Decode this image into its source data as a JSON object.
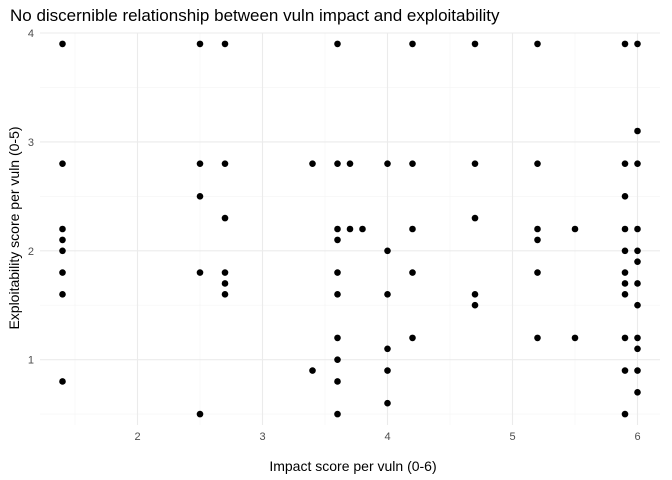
{
  "chart_data": {
    "type": "scatter",
    "title": "No discernible relationship between vuln impact and exploitability",
    "xlabel": "Impact score per vuln (0-6)",
    "ylabel": "Exploitability score per vuln (0-5)",
    "xlim": [
      1.22,
      6.18
    ],
    "ylim": [
      0.4,
      4.0
    ],
    "x_ticks": [
      2,
      3,
      4,
      5,
      6
    ],
    "x_tick_labels": [
      "2",
      "3",
      "4",
      "5",
      "6"
    ],
    "y_ticks": [
      1,
      2,
      3,
      4
    ],
    "y_tick_labels": [
      "1",
      "2",
      "3",
      "4"
    ],
    "x_minor_ticks": [
      1.5,
      2.5,
      3.5,
      4.5,
      5.5
    ],
    "y_minor_ticks": [
      0.5,
      1.5,
      2.5,
      3.5
    ],
    "grid": true,
    "legend": "none",
    "point_color": "#000000",
    "points": [
      [
        1.4,
        3.9
      ],
      [
        1.4,
        2.8
      ],
      [
        1.4,
        2.2
      ],
      [
        1.4,
        2.1
      ],
      [
        1.4,
        2.0
      ],
      [
        1.4,
        1.8
      ],
      [
        1.4,
        1.6
      ],
      [
        1.4,
        0.8
      ],
      [
        2.5,
        3.9
      ],
      [
        2.5,
        2.8
      ],
      [
        2.5,
        2.5
      ],
      [
        2.5,
        1.8
      ],
      [
        2.5,
        0.5
      ],
      [
        2.7,
        3.9
      ],
      [
        2.7,
        2.8
      ],
      [
        2.7,
        2.3
      ],
      [
        2.7,
        1.8
      ],
      [
        2.7,
        1.7
      ],
      [
        2.7,
        1.6
      ],
      [
        3.4,
        2.8
      ],
      [
        3.4,
        0.9
      ],
      [
        3.6,
        3.9
      ],
      [
        3.6,
        2.8
      ],
      [
        3.6,
        2.2
      ],
      [
        3.6,
        2.1
      ],
      [
        3.6,
        1.8
      ],
      [
        3.6,
        1.6
      ],
      [
        3.6,
        1.2
      ],
      [
        3.6,
        1.0
      ],
      [
        3.6,
        0.8
      ],
      [
        3.6,
        0.5
      ],
      [
        3.7,
        2.8
      ],
      [
        3.7,
        2.2
      ],
      [
        3.8,
        2.2
      ],
      [
        4.0,
        2.8
      ],
      [
        4.0,
        2.0
      ],
      [
        4.0,
        1.6
      ],
      [
        4.0,
        1.1
      ],
      [
        4.0,
        0.9
      ],
      [
        4.0,
        0.6
      ],
      [
        4.2,
        3.9
      ],
      [
        4.2,
        2.8
      ],
      [
        4.2,
        2.2
      ],
      [
        4.2,
        1.8
      ],
      [
        4.2,
        1.2
      ],
      [
        4.7,
        3.9
      ],
      [
        4.7,
        2.8
      ],
      [
        4.7,
        2.3
      ],
      [
        4.7,
        1.6
      ],
      [
        4.7,
        1.5
      ],
      [
        5.2,
        3.9
      ],
      [
        5.2,
        2.8
      ],
      [
        5.2,
        2.2
      ],
      [
        5.2,
        2.1
      ],
      [
        5.2,
        1.8
      ],
      [
        5.2,
        1.2
      ],
      [
        5.5,
        2.2
      ],
      [
        5.5,
        1.2
      ],
      [
        5.9,
        3.9
      ],
      [
        5.9,
        2.8
      ],
      [
        5.9,
        2.5
      ],
      [
        5.9,
        2.2
      ],
      [
        5.9,
        2.0
      ],
      [
        5.9,
        1.8
      ],
      [
        5.9,
        1.7
      ],
      [
        5.9,
        1.6
      ],
      [
        5.9,
        1.2
      ],
      [
        5.9,
        0.9
      ],
      [
        5.9,
        0.5
      ],
      [
        6.0,
        3.9
      ],
      [
        6.0,
        3.1
      ],
      [
        6.0,
        2.8
      ],
      [
        6.0,
        2.2
      ],
      [
        6.0,
        2.0
      ],
      [
        6.0,
        1.9
      ],
      [
        6.0,
        1.7
      ],
      [
        6.0,
        1.5
      ],
      [
        6.0,
        1.2
      ],
      [
        6.0,
        1.1
      ],
      [
        6.0,
        0.9
      ],
      [
        6.0,
        0.7
      ]
    ]
  }
}
